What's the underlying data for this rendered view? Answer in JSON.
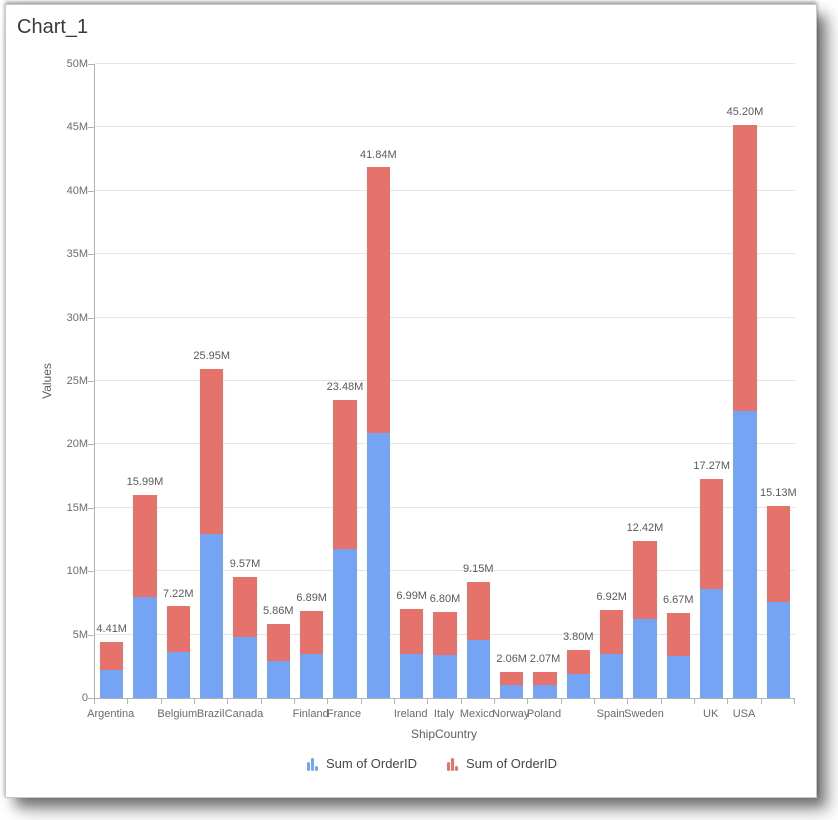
{
  "card": {
    "title": "Chart_1"
  },
  "chart_data": {
    "type": "bar",
    "subtype": "stacked-vertical-columns",
    "title": "Chart_1",
    "xlabel": "ShipCountry",
    "ylabel": "Values",
    "ylim_millions": [
      0,
      50
    ],
    "y_tick_labels": [
      "0",
      "5M",
      "10M",
      "15M",
      "20M",
      "25M",
      "30M",
      "35M",
      "40M",
      "45M",
      "50M"
    ],
    "grid": "horizontal-only",
    "legend_position": "bottom",
    "series": [
      {
        "name": "Sum of OrderID",
        "color": "#76A4F4"
      },
      {
        "name": "Sum of OrderID",
        "color": "#E5726B"
      }
    ],
    "bars": [
      {
        "axis_label": "Argentina",
        "total_label": "4.41M",
        "total_millions": 4.41,
        "segments_millions": [
          2.205,
          2.205
        ]
      },
      {
        "axis_label": "",
        "total_label": "15.99M",
        "total_millions": 15.99,
        "segments_millions": [
          7.995,
          7.995
        ]
      },
      {
        "axis_label": "Belgium",
        "total_label": "7.22M",
        "total_millions": 7.22,
        "segments_millions": [
          3.61,
          3.61
        ]
      },
      {
        "axis_label": "Brazil",
        "total_label": "25.95M",
        "total_millions": 25.95,
        "segments_millions": [
          12.975,
          12.975
        ]
      },
      {
        "axis_label": "Canada",
        "total_label": "9.57M",
        "total_millions": 9.57,
        "segments_millions": [
          4.785,
          4.785
        ]
      },
      {
        "axis_label": "",
        "total_label": "5.86M",
        "total_millions": 5.86,
        "segments_millions": [
          2.93,
          2.93
        ]
      },
      {
        "axis_label": "Finland",
        "total_label": "6.89M",
        "total_millions": 6.89,
        "segments_millions": [
          3.445,
          3.445
        ]
      },
      {
        "axis_label": "France",
        "total_label": "23.48M",
        "total_millions": 23.48,
        "segments_millions": [
          11.74,
          11.74
        ]
      },
      {
        "axis_label": "",
        "total_label": "41.84M",
        "total_millions": 41.84,
        "segments_millions": [
          20.92,
          20.92
        ]
      },
      {
        "axis_label": "Ireland",
        "total_label": "6.99M",
        "total_millions": 6.99,
        "segments_millions": [
          3.495,
          3.495
        ]
      },
      {
        "axis_label": "Italy",
        "total_label": "6.80M",
        "total_millions": 6.8,
        "segments_millions": [
          3.4,
          3.4
        ]
      },
      {
        "axis_label": "Mexico",
        "total_label": "9.15M",
        "total_millions": 9.15,
        "segments_millions": [
          4.575,
          4.575
        ]
      },
      {
        "axis_label": "Norway",
        "total_label": "2.06M",
        "total_millions": 2.06,
        "segments_millions": [
          1.03,
          1.03
        ]
      },
      {
        "axis_label": "Poland",
        "total_label": "2.07M",
        "total_millions": 2.07,
        "segments_millions": [
          1.035,
          1.035
        ]
      },
      {
        "axis_label": "",
        "total_label": "3.80M",
        "total_millions": 3.8,
        "segments_millions": [
          1.9,
          1.9
        ]
      },
      {
        "axis_label": "Spain",
        "total_label": "6.92M",
        "total_millions": 6.92,
        "segments_millions": [
          3.46,
          3.46
        ]
      },
      {
        "axis_label": "Sweden",
        "total_label": "12.42M",
        "total_millions": 12.42,
        "segments_millions": [
          6.21,
          6.21
        ]
      },
      {
        "axis_label": "",
        "total_label": "6.67M",
        "total_millions": 6.67,
        "segments_millions": [
          3.335,
          3.335
        ]
      },
      {
        "axis_label": "UK",
        "total_label": "17.27M",
        "total_millions": 17.27,
        "segments_millions": [
          8.635,
          8.635
        ]
      },
      {
        "axis_label": "USA",
        "total_label": "45.20M",
        "total_millions": 45.2,
        "segments_millions": [
          22.6,
          22.6
        ]
      },
      {
        "axis_label": "",
        "total_label": "15.13M",
        "total_millions": 15.13,
        "segments_millions": [
          7.565,
          7.565
        ]
      }
    ]
  },
  "colors": {
    "series_blue": "#76A4F4",
    "series_red": "#E5726B",
    "gridline": "#e5e5e5",
    "axis_line": "#b3b3b3",
    "title_text": "#3a3a3a",
    "axis_label_text": "#6b6b6b",
    "data_label_text": "#5a5a5a",
    "legend_text": "#464646",
    "card_bg": "#ffffff"
  }
}
